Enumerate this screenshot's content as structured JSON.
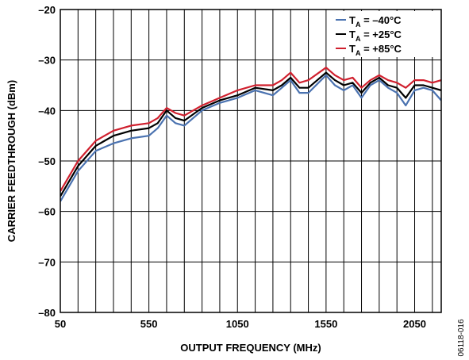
{
  "chart_data": {
    "type": "line",
    "xlabel": "OUTPUT FREQUENCY (MHz)",
    "ylabel": "CARRIER FEEDTHROUGH (dBm)",
    "xlim": [
      50,
      2200
    ],
    "ylim": [
      -80,
      -20
    ],
    "x_ticks": [
      50,
      550,
      1050,
      1550,
      2050
    ],
    "x_tick_labels": [
      "50",
      "550",
      "1050",
      "1550",
      "2050"
    ],
    "y_ticks": [
      -80,
      -70,
      -60,
      -50,
      -40,
      -30,
      -20
    ],
    "y_tick_labels": [
      "–80",
      "–70",
      "–60",
      "–50",
      "–40",
      "–30",
      "–20"
    ],
    "x_grid_step": 100,
    "grid": true,
    "legend_position": "top-right",
    "figure_id": "06118-016",
    "series": [
      {
        "name": "–40°C",
        "color": "#4a72b0",
        "x": [
          50,
          150,
          250,
          350,
          450,
          550,
          600,
          650,
          700,
          750,
          850,
          950,
          1050,
          1150,
          1250,
          1300,
          1350,
          1400,
          1450,
          1550,
          1600,
          1650,
          1700,
          1750,
          1800,
          1850,
          1900,
          1950,
          2000,
          2050,
          2100,
          2150,
          2200
        ],
        "values": [
          -58,
          -52,
          -48,
          -46.5,
          -45.5,
          -45,
          -43.5,
          -41,
          -42.5,
          -43,
          -40,
          -38.5,
          -37.5,
          -36,
          -37,
          -35.5,
          -34,
          -36.5,
          -36.5,
          -33,
          -35,
          -36,
          -35,
          -37.5,
          -35,
          -34,
          -35.5,
          -36.5,
          -39,
          -36,
          -35.5,
          -36,
          -38
        ]
      },
      {
        "name": "+25°C",
        "color": "#000000",
        "x": [
          50,
          150,
          250,
          350,
          450,
          550,
          600,
          650,
          700,
          750,
          850,
          950,
          1050,
          1150,
          1250,
          1300,
          1350,
          1400,
          1450,
          1550,
          1600,
          1650,
          1700,
          1750,
          1800,
          1850,
          1900,
          1950,
          2000,
          2050,
          2100,
          2150,
          2200
        ],
        "values": [
          -57,
          -51,
          -47,
          -45,
          -44,
          -43.5,
          -42.5,
          -40,
          -41.5,
          -42,
          -39.5,
          -38,
          -37,
          -35.5,
          -36,
          -35,
          -33.5,
          -35.5,
          -35.5,
          -32.5,
          -34,
          -35,
          -34.5,
          -36.5,
          -34.5,
          -33.5,
          -35,
          -35.5,
          -37.5,
          -35,
          -35,
          -35.5,
          -36
        ]
      },
      {
        "name": "+85°C",
        "color": "#d0202e",
        "x": [
          50,
          150,
          250,
          350,
          450,
          550,
          600,
          650,
          700,
          750,
          850,
          950,
          1050,
          1150,
          1250,
          1300,
          1350,
          1400,
          1450,
          1550,
          1600,
          1650,
          1700,
          1750,
          1800,
          1850,
          1900,
          1950,
          2000,
          2050,
          2100,
          2150,
          2200
        ],
        "values": [
          -56,
          -50,
          -46,
          -44,
          -43,
          -42.5,
          -41.5,
          -39.5,
          -40.5,
          -41,
          -39,
          -37.5,
          -36,
          -35,
          -35,
          -34,
          -32.5,
          -34.5,
          -34,
          -31.5,
          -33,
          -34,
          -33.5,
          -35.5,
          -34,
          -33,
          -34,
          -34.5,
          -35.5,
          -34,
          -34,
          -34.5,
          -34
        ]
      }
    ]
  },
  "legend": {
    "items": [
      {
        "prefix": "T",
        "sub": "A",
        "text": " = –40°C",
        "color": "#4a72b0"
      },
      {
        "prefix": "T",
        "sub": "A",
        "text": " = +25°C",
        "color": "#000000"
      },
      {
        "prefix": "T",
        "sub": "A",
        "text": " = +85°C",
        "color": "#d0202e"
      }
    ]
  }
}
